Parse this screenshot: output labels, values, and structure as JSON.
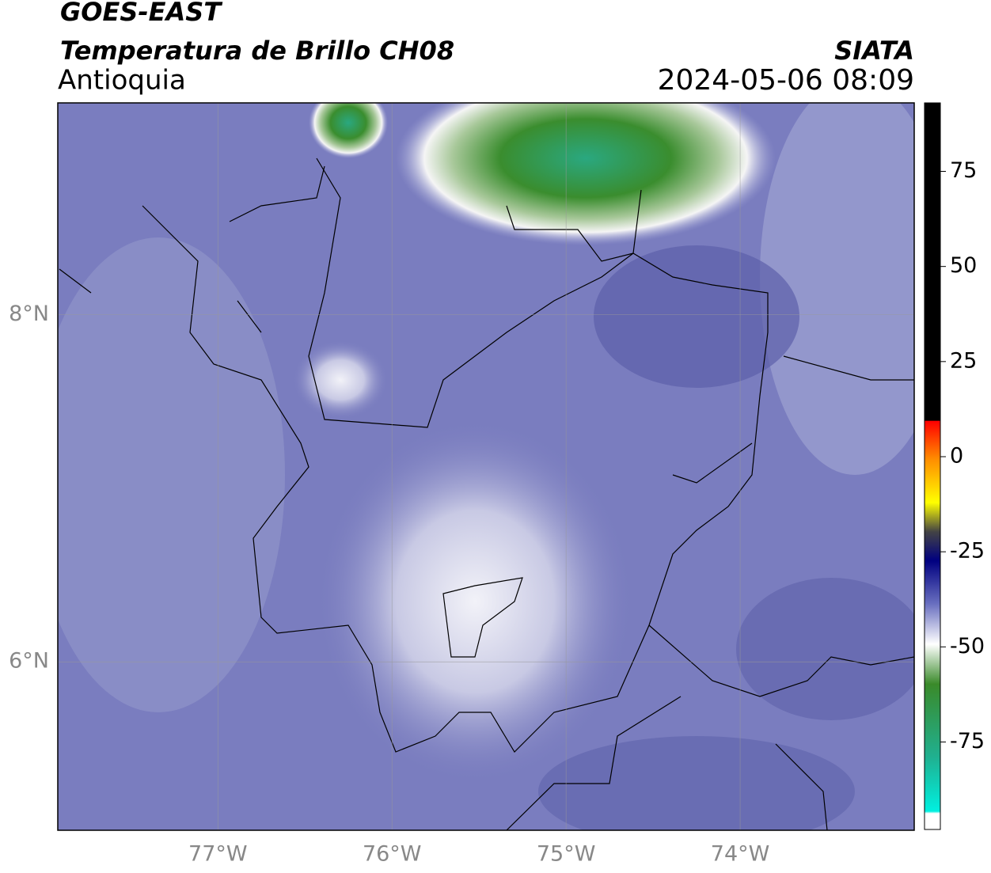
{
  "header": {
    "line1": "GOES-EAST",
    "title": "Temperatura de Brillo CH08",
    "region": "Antioquia",
    "source": "SIATA",
    "datetime": "2024-05-06 08:09"
  },
  "map": {
    "xlim": [
      -77.92,
      -73.0
    ],
    "ylim": [
      5.03,
      9.22
    ],
    "xticks": [
      {
        "value": -77,
        "label": "77°W"
      },
      {
        "value": -76,
        "label": "76°W"
      },
      {
        "value": -75,
        "label": "75°W"
      },
      {
        "value": -74,
        "label": "74°W"
      }
    ],
    "yticks": [
      {
        "value": 8,
        "label": "8°N"
      },
      {
        "value": 6,
        "label": "6°N"
      }
    ]
  },
  "colorbar": {
    "range": [
      -98,
      93
    ],
    "ticks": [
      75,
      50,
      25,
      0,
      -25,
      -50,
      -75
    ]
  }
}
